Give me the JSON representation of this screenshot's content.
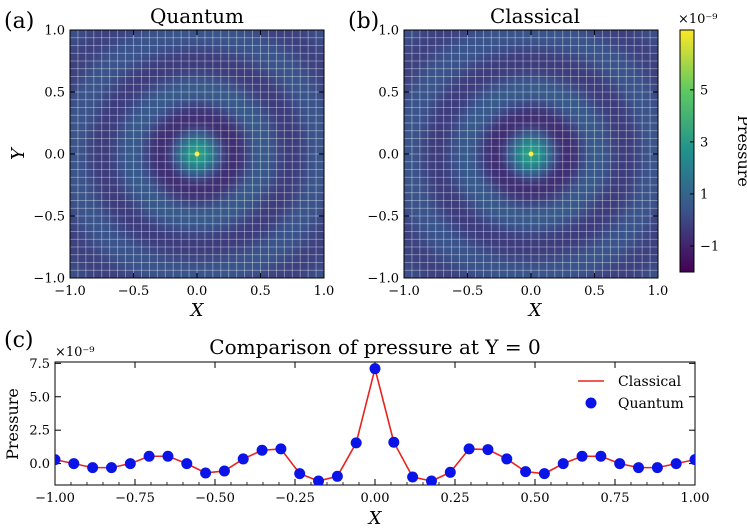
{
  "chart_data": [
    {
      "type": "heatmap",
      "panel_label": "(a)",
      "title": "Quantum",
      "xlabel": "X",
      "ylabel": "Y",
      "xlim": [
        -1.0,
        1.0
      ],
      "ylim": [
        -1.0,
        1.0
      ],
      "x_ticks": [
        "−1.0",
        "−0.5",
        "0.0",
        "0.5",
        "1.0"
      ],
      "y_ticks": [
        "1.0",
        "0.5",
        "0.0",
        "−0.5",
        "−1.0"
      ],
      "grid": true,
      "grid_divisions": 32,
      "field": "concentric radial pressure rings centered at origin, peak at (0,0)"
    },
    {
      "type": "heatmap",
      "panel_label": "(b)",
      "title": "Classical",
      "xlabel": "X",
      "xlim": [
        -1.0,
        1.0
      ],
      "ylim": [
        -1.0,
        1.0
      ],
      "x_ticks": [
        "−1.0",
        "−0.5",
        "0.0",
        "0.5",
        "1.0"
      ],
      "y_ticks": [
        "1.0",
        "0.5",
        "0.0",
        "−0.5",
        "−1.0"
      ],
      "grid": true,
      "grid_divisions": 32,
      "field": "concentric radial pressure rings centered at origin, peak at (0,0)"
    },
    {
      "type": "colorbar",
      "label": "Pressure",
      "offset_label": "×10⁻⁹",
      "range": [
        -2.0,
        7.3
      ],
      "ticks": [
        -1,
        1,
        3,
        5
      ],
      "tick_labels": [
        "−1",
        "1",
        "3",
        "5"
      ],
      "colormap": [
        "#440154",
        "#3b528b",
        "#21918c",
        "#5ec962",
        "#fde725"
      ]
    },
    {
      "type": "line",
      "panel_label": "(c)",
      "title": "Comparison of pressure at Y = 0",
      "xlabel": "X",
      "ylabel": "Pressure",
      "offset_label": "×10⁻⁹",
      "xlim": [
        -1.0,
        1.0
      ],
      "ylim": [
        -1.6,
        7.6
      ],
      "x_ticks": [
        -1.0,
        -0.75,
        -0.5,
        -0.25,
        0.0,
        0.25,
        0.5,
        0.75,
        1.0
      ],
      "x_tick_labels": [
        "−1.00",
        "−0.75",
        "−0.50",
        "−0.25",
        "0.00",
        "0.25",
        "0.50",
        "0.75",
        "1.00"
      ],
      "y_ticks": [
        0.0,
        2.5,
        5.0,
        7.5
      ],
      "y_tick_labels": [
        "0.0",
        "2.5",
        "5.0",
        "7.5"
      ],
      "legend_position": "right",
      "x": [
        -1.0,
        -0.9412,
        -0.8824,
        -0.8235,
        -0.7647,
        -0.7059,
        -0.6471,
        -0.5882,
        -0.5294,
        -0.4706,
        -0.4118,
        -0.3529,
        -0.2941,
        -0.2353,
        -0.1765,
        -0.1176,
        -0.0588,
        0.0,
        0.0588,
        0.1176,
        0.1765,
        0.2353,
        0.2941,
        0.3529,
        0.4118,
        0.4706,
        0.5294,
        0.5882,
        0.6471,
        0.7059,
        0.7647,
        0.8235,
        0.8824,
        0.9412,
        1.0
      ],
      "series": [
        {
          "name": "Classical",
          "style": "line",
          "color": "#e8231f",
          "values": [
            0.3,
            0.0,
            -0.3,
            -0.3,
            0.0,
            0.55,
            0.55,
            0.0,
            -0.7,
            -0.55,
            0.35,
            1.0,
            1.1,
            -0.75,
            -1.3,
            -0.95,
            1.55,
            7.1,
            1.6,
            -1.0,
            -1.3,
            -0.65,
            1.1,
            1.05,
            0.35,
            -0.6,
            -0.75,
            0.0,
            0.55,
            0.55,
            0.0,
            -0.3,
            -0.3,
            0.0,
            0.3
          ]
        },
        {
          "name": "Quantum",
          "style": "markers",
          "color": "#0a14e6",
          "values": [
            0.3,
            0.0,
            -0.3,
            -0.3,
            0.0,
            0.55,
            0.55,
            0.0,
            -0.7,
            -0.55,
            0.35,
            1.0,
            1.1,
            -0.75,
            -1.3,
            -0.95,
            1.55,
            7.1,
            1.6,
            -1.0,
            -1.3,
            -0.65,
            1.1,
            1.05,
            0.35,
            -0.6,
            -0.75,
            0.0,
            0.55,
            0.55,
            0.0,
            -0.3,
            -0.3,
            0.0,
            0.3
          ]
        }
      ]
    }
  ]
}
